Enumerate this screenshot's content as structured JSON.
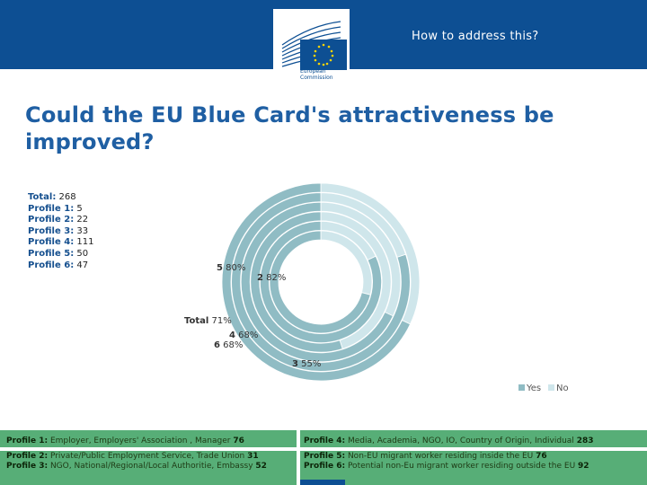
{
  "header": {
    "title": "How to address this?",
    "logo_text": "European Commission"
  },
  "slide": {
    "title": "Could the EU Blue Card's attractiveness be improved?"
  },
  "counts": [
    {
      "label": "Total:",
      "value": "268"
    },
    {
      "label": "Profile 1:",
      "value": "5"
    },
    {
      "label": "Profile 2:",
      "value": "22"
    },
    {
      "label": "Profile 3:",
      "value": "33"
    },
    {
      "label": "Profile 4:",
      "value": "111"
    },
    {
      "label": "Profile 5:",
      "value": "50"
    },
    {
      "label": "Profile 6:",
      "value": "47"
    }
  ],
  "chart_data": {
    "type": "donut",
    "legend": [
      "Yes",
      "No"
    ],
    "legend_position": "bottom-right",
    "colors": {
      "yes": "#90bcc4",
      "no": "#cfe6eb"
    },
    "rings": [
      {
        "name": "Total",
        "yes_pct": 71,
        "label": "Total 71%"
      },
      {
        "name": "2",
        "yes_pct": 82,
        "label": "2 82%"
      },
      {
        "name": "3",
        "yes_pct": 55,
        "label": "3 55%"
      },
      {
        "name": "4",
        "yes_pct": 68,
        "label": "4 68%"
      },
      {
        "name": "5",
        "yes_pct": 80,
        "label": "5 80%"
      },
      {
        "name": "6",
        "yes_pct": 68,
        "label": "6 68%"
      }
    ]
  },
  "footer": {
    "p1": {
      "label": "Profile 1:",
      "text": "Employer, Employers' Association , Manager",
      "n": "76"
    },
    "p2": {
      "label": "Profile 2:",
      "text": "Private/Public Employment Service, Trade Union",
      "n": "31"
    },
    "p3": {
      "label": "Profile 3:",
      "text": "NGO, National/Regional/Local Authoritie, Embassy",
      "n": "52"
    },
    "p4": {
      "label": "Profile 4:",
      "text": "Media, Academia, NGO, IO, Country of Origin, Individual",
      "n": "283"
    },
    "p5": {
      "label": "Profile 5:",
      "text": "Non-EU migrant worker residing inside the EU",
      "n": "76"
    },
    "p6": {
      "label": "Profile 6:",
      "text": "Potential non-Eu migrant worker residing outside the EU",
      "n": "92"
    }
  }
}
